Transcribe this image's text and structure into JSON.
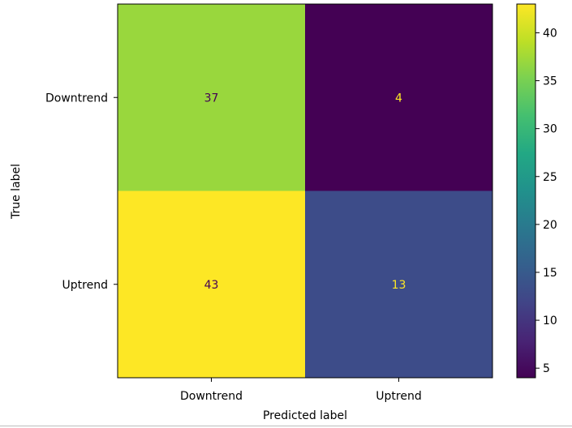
{
  "chart_data": {
    "type": "heatmap",
    "title": "",
    "xlabel": "Predicted label",
    "ylabel": "True label",
    "x_categories": [
      "Downtrend",
      "Uptrend"
    ],
    "y_categories": [
      "Downtrend",
      "Uptrend"
    ],
    "matrix": [
      [
        37,
        4
      ],
      [
        43,
        13
      ]
    ],
    "colormap": "viridis",
    "colorbar": {
      "range": [
        4,
        43
      ],
      "ticks": [
        5,
        10,
        15,
        20,
        25,
        30,
        35,
        40
      ]
    },
    "text_colors": {
      "on_dark": "#fde725",
      "on_light": "#440154"
    }
  }
}
